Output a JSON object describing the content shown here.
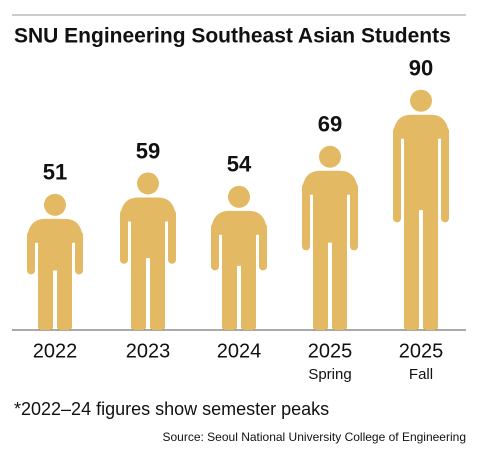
{
  "chart_data": {
    "type": "pictograph",
    "title": "SNU Engineering Southeast Asian Students",
    "categories": [
      "2022",
      "2023",
      "2024",
      "2025",
      "2025"
    ],
    "category_sublabels": [
      null,
      null,
      null,
      "Spring",
      "Fall"
    ],
    "values": [
      51,
      59,
      54,
      69,
      90
    ],
    "color": "#e4b964",
    "note": "*2022–24 figures show semester peaks",
    "source": "Source: Seoul National University College of Engineering"
  }
}
